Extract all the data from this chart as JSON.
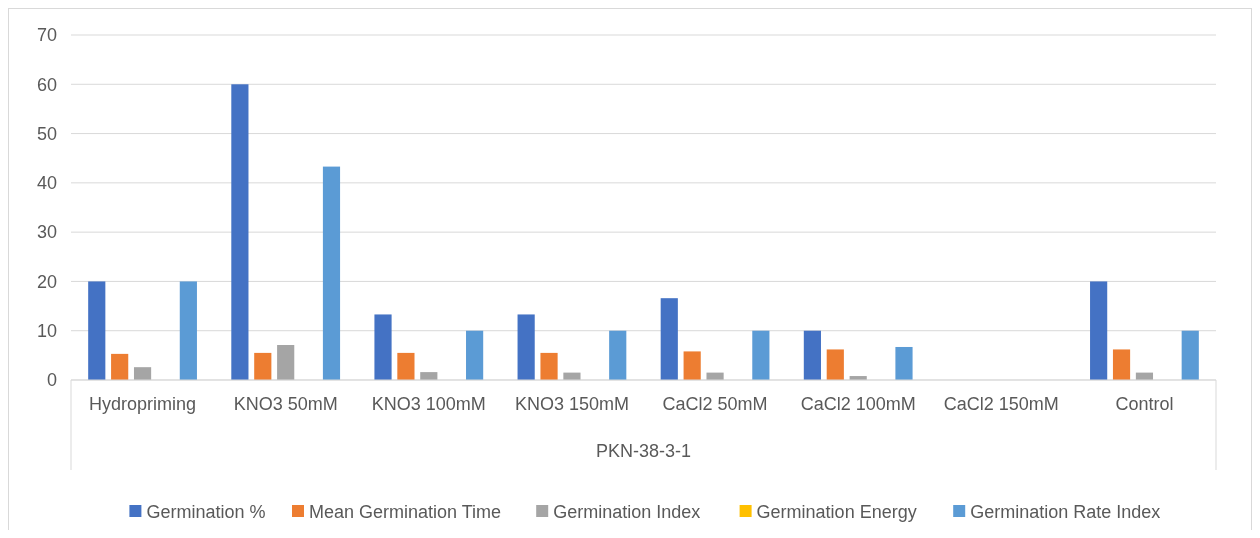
{
  "chart_data": {
    "type": "bar",
    "xlabel": "PKN-38-3-1",
    "categories": [
      "Hydropriming",
      "KNO3 50mM",
      "KNO3 100mM",
      "KNO3 150mM",
      "CaCl2 50mM",
      "CaCl2 100mM",
      "CaCl2 150mM",
      "Control"
    ],
    "series": [
      {
        "name": "Germination %",
        "color": "#4472c4",
        "values": [
          20,
          60,
          13.3,
          13.3,
          16.6,
          10,
          0,
          20
        ]
      },
      {
        "name": "Mean Germination Time",
        "color": "#ed7d31",
        "values": [
          5.3,
          5.5,
          5.5,
          5.5,
          5.8,
          6.2,
          0,
          6.2
        ]
      },
      {
        "name": "Germination Index",
        "color": "#a5a5a5",
        "values": [
          2.6,
          7.1,
          1.6,
          1.5,
          1.5,
          0.8,
          0,
          1.5
        ]
      },
      {
        "name": "Germination Energy",
        "color": "#ffc000",
        "values": [
          0,
          0,
          0,
          0,
          0,
          0,
          0,
          0
        ]
      },
      {
        "name": "Germination Rate Index",
        "color": "#5b9bd5",
        "values": [
          20,
          43.3,
          10,
          10,
          10,
          6.7,
          0,
          10
        ]
      }
    ],
    "ylim": [
      0,
      70
    ],
    "yticks": [
      0,
      10,
      20,
      30,
      40,
      50,
      60,
      70
    ],
    "grid": "y",
    "legend": "bottom"
  }
}
